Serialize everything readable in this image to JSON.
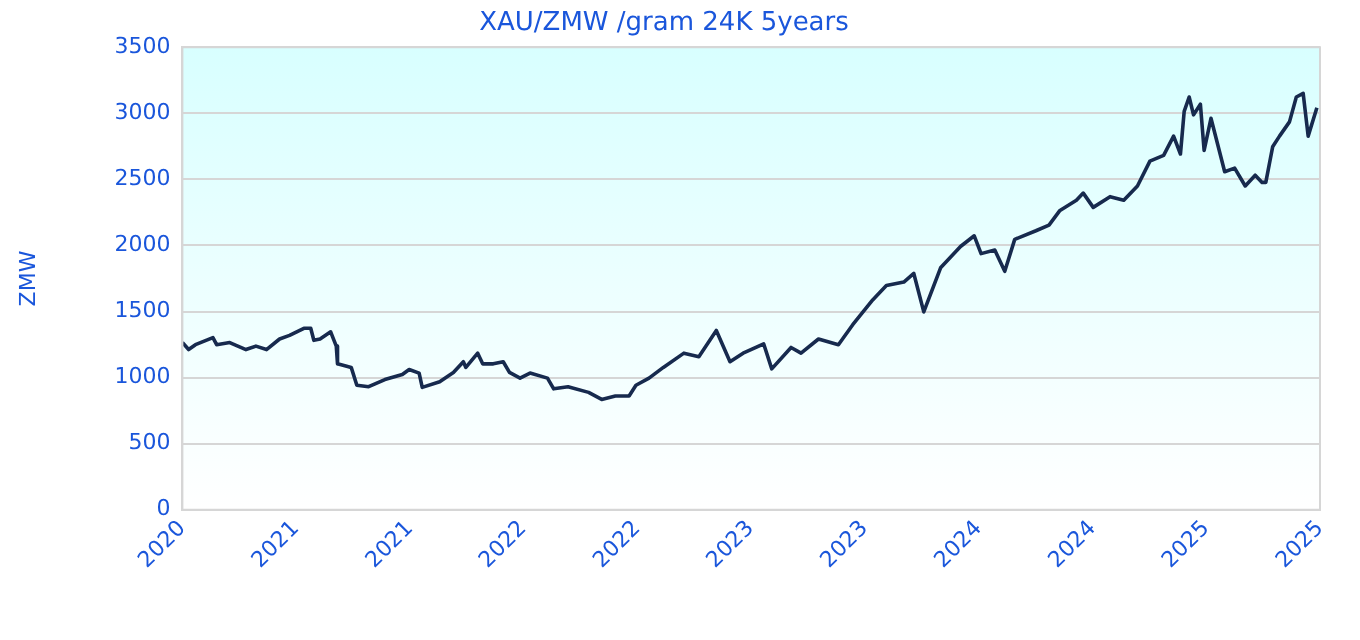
{
  "chart_data": {
    "type": "line",
    "title": "XAU/ZMW /gram 24K 5years",
    "ylabel": "ZMW",
    "x": [
      "2020-12-01",
      "2020-12-11",
      "2020-12-22",
      "2021-01-19",
      "2021-01-25",
      "2021-02-15",
      "2021-03-13",
      "2021-03-29",
      "2021-04-15",
      "2021-05-06",
      "2021-05-22",
      "2021-06-14",
      "2021-06-25",
      "2021-06-30",
      "2021-07-10",
      "2021-07-27",
      "2021-08-05",
      "2021-08-07",
      "2021-08-29",
      "2021-09-07",
      "2021-09-26",
      "2021-10-22",
      "2021-11-19",
      "2021-11-30",
      "2021-12-16",
      "2021-12-21",
      "2022-01-18",
      "2022-02-09",
      "2022-02-25",
      "2022-03-01",
      "2022-03-20",
      "2022-03-28",
      "2022-04-14",
      "2022-04-30",
      "2022-05-10",
      "2022-05-27",
      "2022-06-12",
      "2022-07-10",
      "2022-07-20",
      "2022-08-12",
      "2022-09-14",
      "2022-10-05",
      "2022-10-27",
      "2022-11-18",
      "2022-11-29",
      "2022-12-20",
      "2023-01-12",
      "2023-02-14",
      "2023-03-10",
      "2023-04-07",
      "2023-04-29",
      "2023-05-20",
      "2023-06-22",
      "2023-07-05",
      "2023-08-05",
      "2023-08-21",
      "2023-09-18",
      "2023-10-20",
      "2023-11-12",
      "2023-12-14",
      "2024-01-05",
      "2024-02-02",
      "2024-02-18",
      "2024-03-05",
      "2024-04-01",
      "2024-05-03",
      "2024-05-25",
      "2024-06-05",
      "2024-06-27",
      "2024-07-13",
      "2024-07-29",
      "2024-09-01",
      "2024-09-22",
      "2024-10-09",
      "2024-11-05",
      "2024-11-16",
      "2024-12-02",
      "2024-12-29",
      "2025-01-20",
      "2025-02-11",
      "2025-03-03",
      "2025-03-25",
      "2025-04-10",
      "2025-04-21",
      "2025-04-27",
      "2025-05-05",
      "2025-05-12",
      "2025-05-23",
      "2025-05-29",
      "2025-06-09",
      "2025-07-01",
      "2025-07-17",
      "2025-08-03",
      "2025-08-19",
      "2025-08-30",
      "2025-09-05",
      "2025-09-16",
      "2025-09-27",
      "2025-10-13",
      "2025-10-24",
      "2025-11-04",
      "2025-11-12",
      "2025-11-26"
    ],
    "series": [
      {
        "color": "#172a4e",
        "values": [
          1265,
          1212,
          1249,
          1303,
          1249,
          1265,
          1212,
          1238,
          1212,
          1292,
          1319,
          1373,
          1373,
          1282,
          1292,
          1346,
          1238,
          1104,
          1077,
          942,
          931,
          985,
          1023,
          1061,
          1034,
          926,
          969,
          1039,
          1120,
          1077,
          1185,
          1104,
          1104,
          1120,
          1039,
          996,
          1034,
          996,
          915,
          931,
          888,
          835,
          861,
          861,
          942,
          996,
          1077,
          1185,
          1158,
          1357,
          1120,
          1185,
          1255,
          1066,
          1228,
          1185,
          1292,
          1249,
          1400,
          1588,
          1696,
          1723,
          1788,
          1497,
          1831,
          1992,
          2073,
          1938,
          1965,
          1804,
          2046,
          2111,
          2154,
          2262,
          2342,
          2396,
          2288,
          2369,
          2342,
          2450,
          2638,
          2681,
          2827,
          2692,
          3015,
          3123,
          2988,
          3069,
          2719,
          2962,
          2558,
          2585,
          2450,
          2531,
          2477,
          2477,
          2746,
          2827,
          2935,
          3123,
          3150,
          2827,
          3042
        ]
      }
    ],
    "xlim": [
      "2020-12",
      "2025-12"
    ],
    "xticks": [
      {
        "value": "2020-12",
        "label": "2020"
      },
      {
        "value": "2021-06",
        "label": "2021"
      },
      {
        "value": "2021-12",
        "label": "2021"
      },
      {
        "value": "2022-06",
        "label": "2022"
      },
      {
        "value": "2022-12",
        "label": "2022"
      },
      {
        "value": "2023-06",
        "label": "2023"
      },
      {
        "value": "2023-12",
        "label": "2023"
      },
      {
        "value": "2024-06",
        "label": "2024"
      },
      {
        "value": "2024-12",
        "label": "2024"
      },
      {
        "value": "2025-06",
        "label": "2025"
      },
      {
        "value": "2025-12",
        "label": "2025"
      }
    ],
    "ylim": [
      0,
      3500
    ],
    "yticks": [
      0,
      500,
      1000,
      1500,
      2000,
      2500,
      3000,
      3500
    ],
    "grid": "y",
    "legend": false,
    "marker": "none",
    "line_style": "solid"
  }
}
